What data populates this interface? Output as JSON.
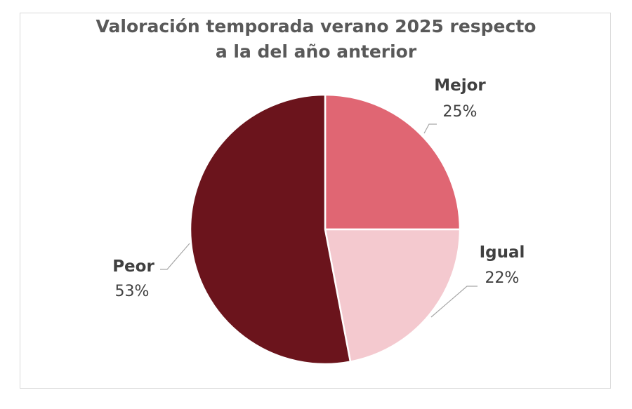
{
  "chart_data": {
    "type": "pie",
    "title_lines": [
      "Valoración temporada verano 2025 respecto",
      "a la del año anterior"
    ],
    "slices": [
      {
        "label": "Mejor",
        "value": 25,
        "value_label": "25%",
        "color": "#e06673"
      },
      {
        "label": "Igual",
        "value": 22,
        "value_label": "22%",
        "color": "#f4c9cf"
      },
      {
        "label": "Peor",
        "value": 53,
        "value_label": "53%",
        "color": "#6b141c"
      }
    ],
    "start_angle_deg": 0,
    "direction": "clockwise",
    "legend": "none",
    "labels": "outside-with-leader-lines"
  }
}
